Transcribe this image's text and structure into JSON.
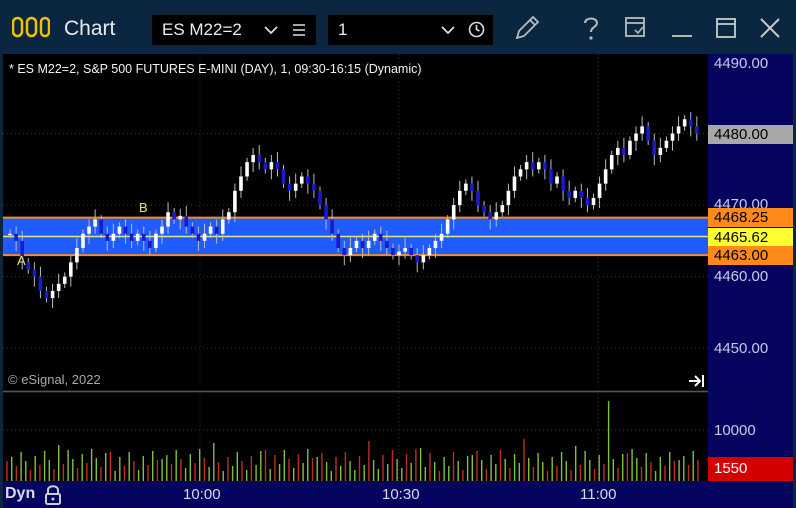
{
  "window": {
    "title": "Chart",
    "symbol": "ES M22=2",
    "interval": "1"
  },
  "toolbar": {
    "icons": [
      "menu-lines-icon",
      "clock-icon",
      "pencil-icon",
      "help-icon",
      "templates-icon",
      "minimize-icon",
      "maximize-icon",
      "close-icon"
    ]
  },
  "chart": {
    "caption": "* ES M22=2, S&P 500 FUTURES E-MINI (DAY), 1, 09:30-16:15 (Dynamic)",
    "copyright": "© eSignal, 2022",
    "marker_a": "A",
    "marker_b": "B"
  },
  "price_scale": {
    "labels": [
      "4490.00",
      "4470.00",
      "4460.00",
      "4450.00"
    ],
    "last_price": "4480.00",
    "band_top": "4468.25",
    "band_mid": "4465.62",
    "band_bottom": "4463.00"
  },
  "volume_scale": {
    "label": "10000",
    "last_volume": "1550"
  },
  "time_axis": {
    "mode": "Dyn",
    "labels": [
      "10:00",
      "10:30",
      "11:00"
    ]
  },
  "colors": {
    "band_fill": "#1f5bff",
    "band_border": "#ff8a1a",
    "band_mid": "#e6e67a",
    "up_candle": "#ffffff",
    "down_candle": "#1a1acc",
    "scale_bg": "#050560",
    "last_price_tag": "#a8a8a8",
    "volume_tag": "#d40000"
  }
}
